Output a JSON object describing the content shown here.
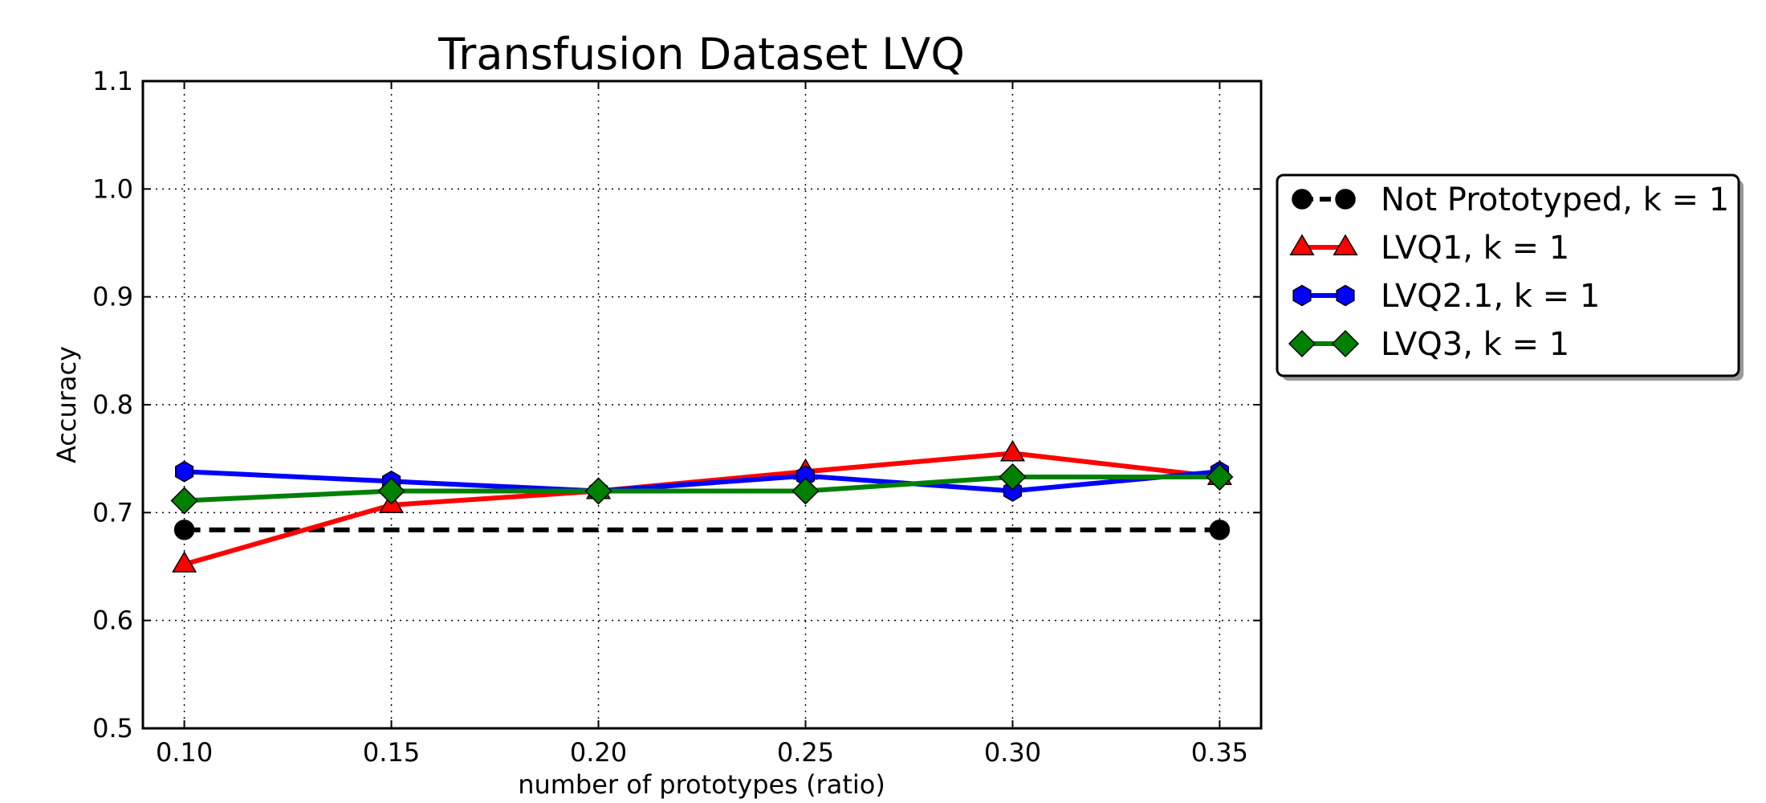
{
  "chart_data": {
    "type": "line",
    "title": "Transfusion Dataset LVQ",
    "xlabel": "number of prototypes (ratio)",
    "ylabel": "Accuracy",
    "xlim": [
      0.09,
      0.36
    ],
    "ylim": [
      0.5,
      1.1
    ],
    "xticks": [
      "0.10",
      "0.15",
      "0.20",
      "0.25",
      "0.30",
      "0.35"
    ],
    "yticks": [
      "0.5",
      "0.6",
      "0.7",
      "0.8",
      "0.9",
      "1.0",
      "1.1"
    ],
    "grid": true,
    "legend_position": "outside-right-top",
    "series": [
      {
        "name": "Not Prototyped, k = 1",
        "color": "#000000",
        "linestyle": "dashed",
        "marker": "circle",
        "x": [
          0.1,
          0.35
        ],
        "y": [
          0.684,
          0.684
        ]
      },
      {
        "name": "LVQ1, k = 1",
        "color": "#ff0000",
        "linestyle": "solid",
        "marker": "triangle",
        "x": [
          0.1,
          0.15,
          0.2,
          0.25,
          0.3,
          0.35
        ],
        "y": [
          0.652,
          0.707,
          0.72,
          0.738,
          0.755,
          0.733
        ]
      },
      {
        "name": "LVQ2.1, k = 1",
        "color": "#0000ff",
        "linestyle": "solid",
        "marker": "hexagon",
        "x": [
          0.1,
          0.15,
          0.2,
          0.25,
          0.3,
          0.35
        ],
        "y": [
          0.738,
          0.729,
          0.72,
          0.734,
          0.72,
          0.738
        ]
      },
      {
        "name": "LVQ3, k = 1",
        "color": "#008000",
        "linestyle": "solid",
        "marker": "diamond",
        "x": [
          0.1,
          0.15,
          0.2,
          0.25,
          0.3,
          0.35
        ],
        "y": [
          0.711,
          0.72,
          0.72,
          0.72,
          0.733,
          0.733
        ]
      }
    ]
  }
}
